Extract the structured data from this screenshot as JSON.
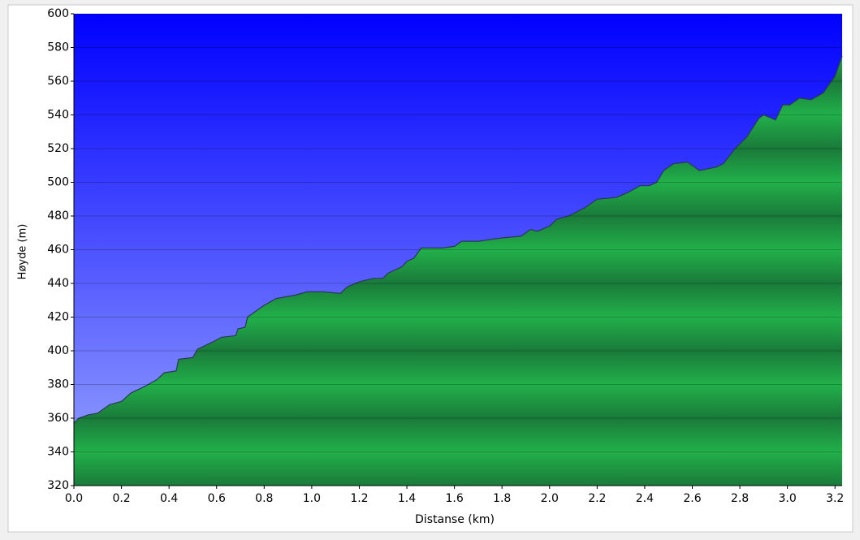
{
  "chart_data": {
    "type": "area",
    "x_label": "Distanse (km)",
    "y_label": "Høyde (m)",
    "x": [
      0.0,
      0.02,
      0.06,
      0.1,
      0.15,
      0.2,
      0.24,
      0.3,
      0.35,
      0.38,
      0.43,
      0.44,
      0.5,
      0.52,
      0.58,
      0.62,
      0.68,
      0.69,
      0.72,
      0.73,
      0.8,
      0.85,
      0.93,
      0.98,
      1.05,
      1.12,
      1.15,
      1.2,
      1.26,
      1.3,
      1.32,
      1.38,
      1.4,
      1.43,
      1.46,
      1.55,
      1.6,
      1.63,
      1.7,
      1.8,
      1.88,
      1.92,
      1.95,
      2.0,
      2.03,
      2.08,
      2.15,
      2.2,
      2.28,
      2.33,
      2.38,
      2.42,
      2.45,
      2.48,
      2.52,
      2.58,
      2.63,
      2.7,
      2.73,
      2.78,
      2.83,
      2.88,
      2.9,
      2.95,
      2.98,
      3.01,
      3.05,
      3.1,
      3.15,
      3.2,
      3.23
    ],
    "values": [
      357,
      360,
      362,
      363,
      368,
      370,
      375,
      379,
      383,
      387,
      388,
      395,
      396,
      401,
      405,
      408,
      409,
      413,
      414,
      420,
      427,
      431,
      433,
      435,
      435,
      434,
      438,
      441,
      443,
      443,
      446,
      450,
      453,
      455,
      461,
      461,
      462,
      465,
      465,
      467,
      468,
      472,
      471,
      474,
      478,
      480,
      485,
      490,
      491,
      494,
      498,
      498,
      500,
      507,
      511,
      512,
      507,
      509,
      511,
      520,
      527,
      538,
      540,
      537,
      546,
      546,
      550,
      549,
      553,
      563,
      575
    ],
    "color": "#22aa44",
    "xlim": [
      0,
      3.23
    ],
    "ylim": [
      320,
      600
    ],
    "xticks": [
      {
        "value": 0,
        "label": "0.0"
      },
      0.2,
      0.4,
      0.6,
      0.8,
      {
        "value": 1,
        "label": "1.0"
      },
      1.2,
      1.4,
      1.6,
      1.8,
      {
        "value": 2,
        "label": "2.0"
      },
      2.2,
      2.4,
      2.6,
      2.8,
      {
        "value": 3,
        "label": "3.0"
      },
      3.2
    ],
    "yticks": [
      320,
      340,
      360,
      380,
      400,
      420,
      440,
      460,
      480,
      500,
      520,
      540,
      560,
      580,
      600
    ],
    "grid": true
  }
}
